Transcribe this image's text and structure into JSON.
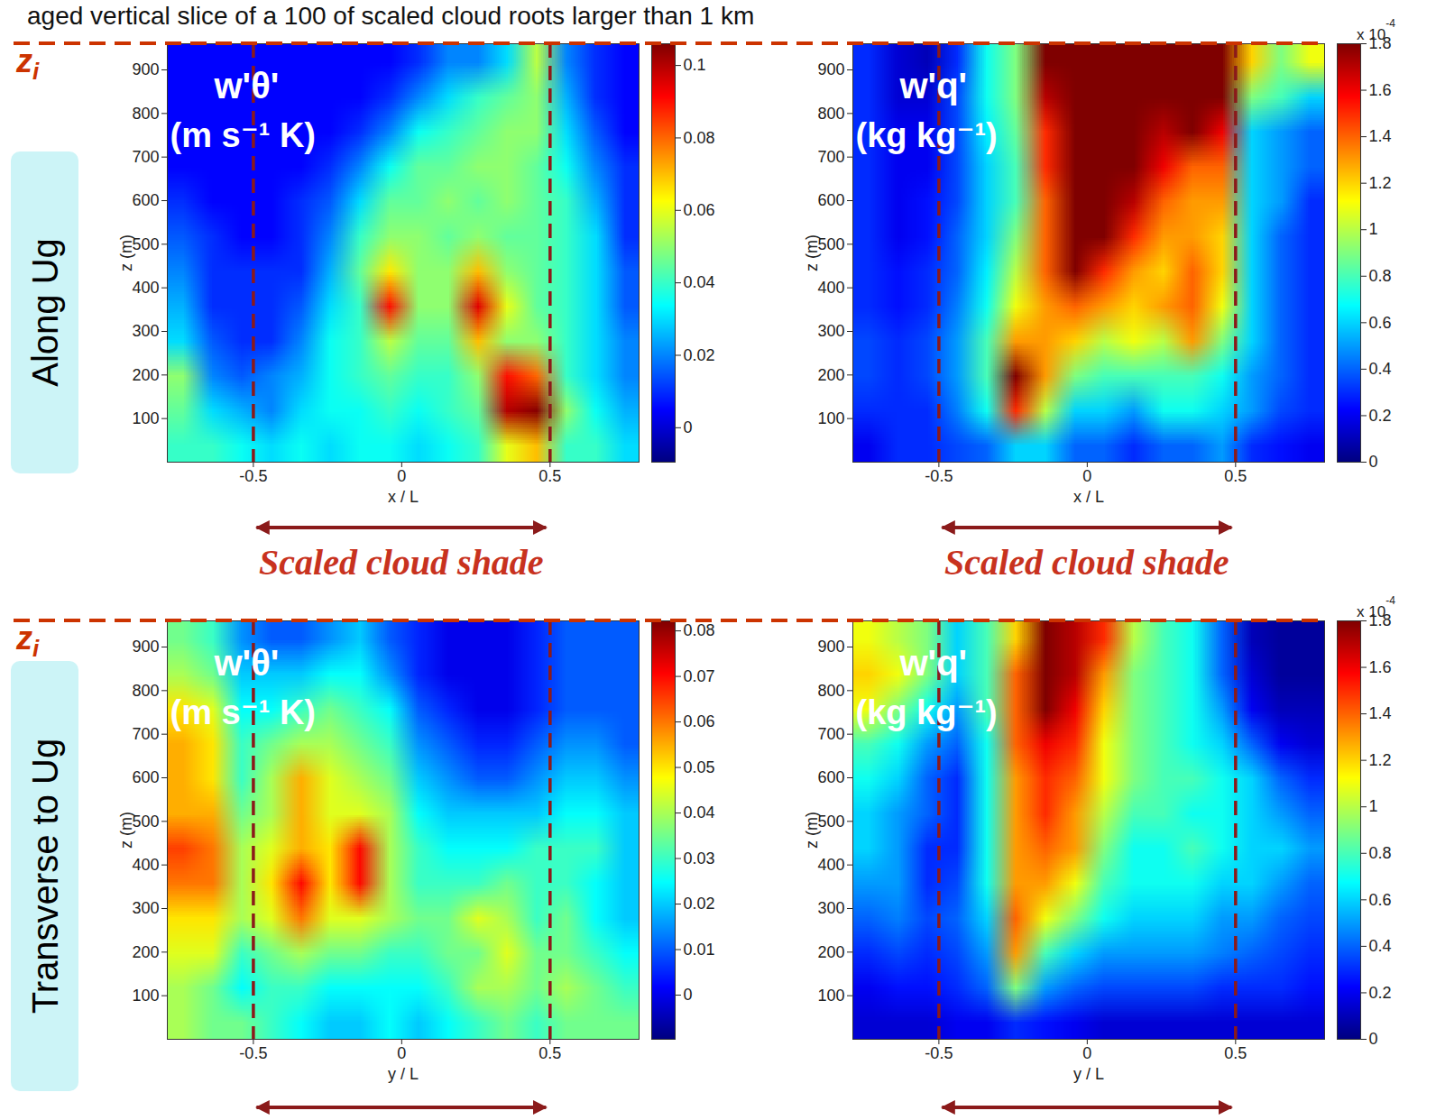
{
  "heading": "aged vertical slice of a 100 of scaled cloud roots larger than 1 km",
  "row_labels": [
    "Along Ug",
    "Transverse to Ug"
  ],
  "zi_label": {
    "text": "z",
    "sub": "i"
  },
  "chart_data": [
    {
      "type": "heatmap",
      "title": "w'θ'",
      "subtitle": "(m s⁻¹ K)",
      "x_label": "x / L",
      "y_label": "z (m)",
      "xlim": [
        -0.79,
        0.8
      ],
      "ylim": [
        0,
        960
      ],
      "xticks": [
        -0.5,
        0,
        0.5
      ],
      "yticks": [
        100,
        200,
        300,
        400,
        500,
        600,
        700,
        800,
        900
      ],
      "shade": [
        -0.5,
        0.5
      ],
      "zi": 960,
      "annotation": "Scaled cloud shade",
      "colorbar": {
        "lim": [
          -0.0095,
          0.106
        ],
        "ticks": [
          0,
          0.02,
          0.04,
          0.06,
          0.08,
          0.1
        ]
      },
      "cells": [
        [
          0.005,
          0.005,
          0.005,
          0.005,
          0.005,
          0.005,
          0.005,
          0.005,
          0.01,
          0.02,
          0.02,
          0.03,
          0.055,
          0.02,
          0.01,
          0.005
        ],
        [
          0.005,
          0.005,
          0.005,
          0.005,
          0.005,
          0.005,
          0.005,
          0.01,
          0.02,
          0.03,
          0.04,
          0.045,
          0.05,
          0.025,
          0.01,
          0.005
        ],
        [
          0.005,
          0.005,
          0.005,
          0.005,
          0.005,
          0.005,
          0.01,
          0.02,
          0.035,
          0.04,
          0.045,
          0.05,
          0.05,
          0.03,
          0.015,
          0.005
        ],
        [
          0.005,
          0.005,
          0.005,
          0.005,
          0.005,
          0.01,
          0.02,
          0.035,
          0.045,
          0.045,
          0.05,
          0.05,
          0.045,
          0.035,
          0.02,
          0.01
        ],
        [
          0.01,
          0.005,
          0.005,
          0.005,
          0.01,
          0.015,
          0.03,
          0.045,
          0.045,
          0.05,
          0.045,
          0.05,
          0.045,
          0.04,
          0.025,
          0.01
        ],
        [
          0.015,
          0.01,
          0.005,
          0.005,
          0.01,
          0.02,
          0.04,
          0.05,
          0.05,
          0.045,
          0.05,
          0.045,
          0.045,
          0.04,
          0.03,
          0.01
        ],
        [
          0.02,
          0.01,
          0.01,
          0.01,
          0.01,
          0.025,
          0.045,
          0.065,
          0.05,
          0.05,
          0.07,
          0.05,
          0.045,
          0.04,
          0.03,
          0.015
        ],
        [
          0.025,
          0.01,
          0.01,
          0.01,
          0.015,
          0.03,
          0.04,
          0.09,
          0.05,
          0.05,
          0.095,
          0.06,
          0.045,
          0.04,
          0.03,
          0.015
        ],
        [
          0.03,
          0.015,
          0.01,
          0.01,
          0.02,
          0.035,
          0.04,
          0.055,
          0.045,
          0.045,
          0.07,
          0.05,
          0.05,
          0.04,
          0.03,
          0.02
        ],
        [
          0.05,
          0.02,
          0.015,
          0.02,
          0.025,
          0.035,
          0.04,
          0.045,
          0.04,
          0.04,
          0.05,
          0.09,
          0.08,
          0.04,
          0.03,
          0.02
        ],
        [
          0.045,
          0.03,
          0.025,
          0.02,
          0.03,
          0.035,
          0.035,
          0.04,
          0.035,
          0.04,
          0.045,
          0.1,
          0.105,
          0.05,
          0.035,
          0.025
        ],
        [
          0.04,
          0.04,
          0.035,
          0.03,
          0.035,
          0.03,
          0.035,
          0.035,
          0.03,
          0.035,
          0.04,
          0.06,
          0.07,
          0.04,
          0.04,
          0.03
        ]
      ]
    },
    {
      "type": "heatmap",
      "title": "w'q'",
      "subtitle": "(kg kg⁻¹)",
      "x_label": "x / L",
      "y_label": "z (m)",
      "xlim": [
        -0.79,
        0.8
      ],
      "ylim": [
        0,
        960
      ],
      "xticks": [
        -0.5,
        0,
        0.5
      ],
      "yticks": [
        100,
        200,
        300,
        400,
        500,
        600,
        700,
        800,
        900
      ],
      "shade": [
        -0.5,
        0.5
      ],
      "zi": 960,
      "annotation": "Scaled cloud shade",
      "colorbar": {
        "lim": [
          0,
          1.8
        ],
        "ticks": [
          0,
          0.2,
          0.4,
          0.6,
          0.8,
          1,
          1.2,
          1.4,
          1.6,
          1.8
        ],
        "multiplier": "x 10",
        "exponent": "-4"
      },
      "cells": [
        [
          0.3,
          0.15,
          0.1,
          0.3,
          0.7,
          0.9,
          1.8,
          1.8,
          1.8,
          1.8,
          1.8,
          1.8,
          1.8,
          1.2,
          0.9,
          1.1
        ],
        [
          0.3,
          0.15,
          0.15,
          0.35,
          0.7,
          0.9,
          1.7,
          1.8,
          1.8,
          1.8,
          1.8,
          1.8,
          1.8,
          0.9,
          0.8,
          0.6
        ],
        [
          0.3,
          0.2,
          0.2,
          0.35,
          0.65,
          0.85,
          1.5,
          1.8,
          1.8,
          1.8,
          1.7,
          1.8,
          1.6,
          0.6,
          0.5,
          0.4
        ],
        [
          0.3,
          0.2,
          0.2,
          0.35,
          0.6,
          0.8,
          1.5,
          1.8,
          1.8,
          1.8,
          1.6,
          1.4,
          1.4,
          0.6,
          0.5,
          0.4
        ],
        [
          0.3,
          0.2,
          0.25,
          0.35,
          0.6,
          0.8,
          1.4,
          1.8,
          1.8,
          1.7,
          1.4,
          1.3,
          1.3,
          0.6,
          0.5,
          0.3
        ],
        [
          0.3,
          0.2,
          0.25,
          0.4,
          0.6,
          0.9,
          1.4,
          1.8,
          1.8,
          1.5,
          1.3,
          1.3,
          1.2,
          0.6,
          0.4,
          0.3
        ],
        [
          0.3,
          0.25,
          0.3,
          0.4,
          0.65,
          1.0,
          1.4,
          1.8,
          1.5,
          1.3,
          1.2,
          1.4,
          1.2,
          0.6,
          0.4,
          0.3
        ],
        [
          0.3,
          0.25,
          0.3,
          0.45,
          0.7,
          1.1,
          1.3,
          1.4,
          1.3,
          1.2,
          1.3,
          1.4,
          1.1,
          0.6,
          0.4,
          0.3
        ],
        [
          0.35,
          0.3,
          0.35,
          0.5,
          0.8,
          1.3,
          1.3,
          1.2,
          1.0,
          1.1,
          1.0,
          1.3,
          0.9,
          0.6,
          0.4,
          0.3
        ],
        [
          0.35,
          0.3,
          0.35,
          0.5,
          0.8,
          1.8,
          1.3,
          0.9,
          0.8,
          0.8,
          0.8,
          0.8,
          0.7,
          0.5,
          0.4,
          0.3
        ],
        [
          0.3,
          0.3,
          0.3,
          0.45,
          0.7,
          1.5,
          1.0,
          0.6,
          0.6,
          0.5,
          0.7,
          0.7,
          0.6,
          0.5,
          0.35,
          0.3
        ],
        [
          0.2,
          0.3,
          0.3,
          0.35,
          0.4,
          0.6,
          0.6,
          0.4,
          0.4,
          0.3,
          0.4,
          0.4,
          0.5,
          0.3,
          0.25,
          0.2
        ]
      ]
    },
    {
      "type": "heatmap",
      "title": "w'θ'",
      "subtitle": "(m s⁻¹ K)",
      "x_label": "y / L",
      "y_label": "z (m)",
      "xlim": [
        -0.79,
        0.8
      ],
      "ylim": [
        0,
        960
      ],
      "xticks": [
        -0.5,
        0,
        0.5
      ],
      "yticks": [
        100,
        200,
        300,
        400,
        500,
        600,
        700,
        800,
        900
      ],
      "shade": [
        -0.5,
        0.5
      ],
      "zi": 960,
      "colorbar": {
        "lim": [
          -0.0097,
          0.0822
        ],
        "ticks": [
          0,
          0.01,
          0.02,
          0.03,
          0.04,
          0.05,
          0.06,
          0.07,
          0.08
        ]
      },
      "cells": [
        [
          0.035,
          0.03,
          0.015,
          0.01,
          0.01,
          0.015,
          0.02,
          0.01,
          0.005,
          0,
          0,
          0,
          0.005,
          0.01,
          0.01,
          0.01
        ],
        [
          0.04,
          0.035,
          0.02,
          0.02,
          0.02,
          0.025,
          0.025,
          0.015,
          0.005,
          0,
          0,
          0,
          0.005,
          0.01,
          0.01,
          0.01
        ],
        [
          0.05,
          0.045,
          0.025,
          0.025,
          0.03,
          0.035,
          0.03,
          0.025,
          0.01,
          0.005,
          0,
          0,
          0.005,
          0.01,
          0.01,
          0.01
        ],
        [
          0.055,
          0.05,
          0.03,
          0.035,
          0.04,
          0.04,
          0.035,
          0.03,
          0.015,
          0.01,
          0.005,
          0.005,
          0.01,
          0.015,
          0.015,
          0.01
        ],
        [
          0.055,
          0.05,
          0.03,
          0.04,
          0.055,
          0.045,
          0.04,
          0.035,
          0.02,
          0.015,
          0.01,
          0.01,
          0.015,
          0.02,
          0.02,
          0.015
        ],
        [
          0.055,
          0.055,
          0.035,
          0.04,
          0.055,
          0.045,
          0.045,
          0.04,
          0.025,
          0.02,
          0.02,
          0.02,
          0.02,
          0.025,
          0.025,
          0.02
        ],
        [
          0.065,
          0.06,
          0.04,
          0.045,
          0.055,
          0.05,
          0.07,
          0.04,
          0.03,
          0.025,
          0.025,
          0.025,
          0.03,
          0.03,
          0.03,
          0.02
        ],
        [
          0.06,
          0.06,
          0.04,
          0.05,
          0.07,
          0.05,
          0.07,
          0.04,
          0.03,
          0.03,
          0.03,
          0.035,
          0.03,
          0.03,
          0.025,
          0.02
        ],
        [
          0.05,
          0.05,
          0.04,
          0.045,
          0.06,
          0.045,
          0.045,
          0.04,
          0.035,
          0.035,
          0.045,
          0.04,
          0.03,
          0.035,
          0.025,
          0.02
        ],
        [
          0.045,
          0.045,
          0.03,
          0.035,
          0.04,
          0.035,
          0.035,
          0.03,
          0.03,
          0.035,
          0.035,
          0.045,
          0.035,
          0.035,
          0.03,
          0.025
        ],
        [
          0.04,
          0.035,
          0.025,
          0.03,
          0.03,
          0.025,
          0.025,
          0.025,
          0.025,
          0.03,
          0.04,
          0.04,
          0.035,
          0.04,
          0.035,
          0.03
        ],
        [
          0.04,
          0.035,
          0.035,
          0.03,
          0.025,
          0.02,
          0.02,
          0.025,
          0.02,
          0.025,
          0.03,
          0.035,
          0.03,
          0.035,
          0.035,
          0.035
        ]
      ]
    },
    {
      "type": "heatmap",
      "title": "w'q'",
      "subtitle": "(kg kg⁻¹)",
      "x_label": "y / L",
      "y_label": "z (m)",
      "xlim": [
        -0.79,
        0.8
      ],
      "ylim": [
        0,
        960
      ],
      "xticks": [
        -0.5,
        0,
        0.5
      ],
      "yticks": [
        100,
        200,
        300,
        400,
        500,
        600,
        700,
        800,
        900
      ],
      "shade": [
        -0.5,
        0.5
      ],
      "zi": 960,
      "colorbar": {
        "lim": [
          0,
          1.8
        ],
        "ticks": [
          0,
          0.2,
          0.4,
          0.6,
          0.8,
          1,
          1.2,
          1.4,
          1.6,
          1.8
        ],
        "multiplier": "x 10",
        "exponent": "-4"
      },
      "cells": [
        [
          1.1,
          1.0,
          0.9,
          0.6,
          0.8,
          1.2,
          1.8,
          1.7,
          1.5,
          1.0,
          0.8,
          0.7,
          0.4,
          0.1,
          0.05,
          0.05
        ],
        [
          1.2,
          1.1,
          0.9,
          0.6,
          0.8,
          1.4,
          1.8,
          1.7,
          1.3,
          0.9,
          0.8,
          0.7,
          0.4,
          0.15,
          0.05,
          0.05
        ],
        [
          1.1,
          0.9,
          0.7,
          0.5,
          0.8,
          1.4,
          1.8,
          1.6,
          1.2,
          0.9,
          0.8,
          0.7,
          0.5,
          0.2,
          0.1,
          0.1
        ],
        [
          0.8,
          0.7,
          0.5,
          0.4,
          0.7,
          1.4,
          1.6,
          1.5,
          1.1,
          0.9,
          0.8,
          0.7,
          0.6,
          0.4,
          0.2,
          0.15
        ],
        [
          0.7,
          0.6,
          0.4,
          0.3,
          0.7,
          1.3,
          1.5,
          1.4,
          1.1,
          0.9,
          0.8,
          0.8,
          0.7,
          0.6,
          0.4,
          0.3
        ],
        [
          0.6,
          0.5,
          0.4,
          0.3,
          0.7,
          1.3,
          1.5,
          1.3,
          1.0,
          0.8,
          0.8,
          0.7,
          0.7,
          0.6,
          0.5,
          0.4
        ],
        [
          0.6,
          0.5,
          0.3,
          0.3,
          0.7,
          1.3,
          1.4,
          1.3,
          0.9,
          0.7,
          0.7,
          0.8,
          0.7,
          0.6,
          0.6,
          0.5
        ],
        [
          0.5,
          0.5,
          0.3,
          0.35,
          0.7,
          1.3,
          1.3,
          1.1,
          0.8,
          0.7,
          0.7,
          0.7,
          0.6,
          0.6,
          0.5,
          0.4
        ],
        [
          0.4,
          0.45,
          0.35,
          0.4,
          0.6,
          1.4,
          1.1,
          0.9,
          0.7,
          0.6,
          0.6,
          0.6,
          0.5,
          0.5,
          0.4,
          0.35
        ],
        [
          0.3,
          0.35,
          0.3,
          0.35,
          0.5,
          1.3,
          0.8,
          0.6,
          0.5,
          0.5,
          0.5,
          0.5,
          0.45,
          0.4,
          0.35,
          0.3
        ],
        [
          0.2,
          0.25,
          0.25,
          0.3,
          0.4,
          0.9,
          0.5,
          0.4,
          0.35,
          0.35,
          0.35,
          0.35,
          0.3,
          0.3,
          0.3,
          0.25
        ],
        [
          0.15,
          0.15,
          0.15,
          0.2,
          0.2,
          0.3,
          0.25,
          0.2,
          0.15,
          0.15,
          0.15,
          0.15,
          0.15,
          0.15,
          0.15,
          0.15
        ]
      ]
    }
  ]
}
